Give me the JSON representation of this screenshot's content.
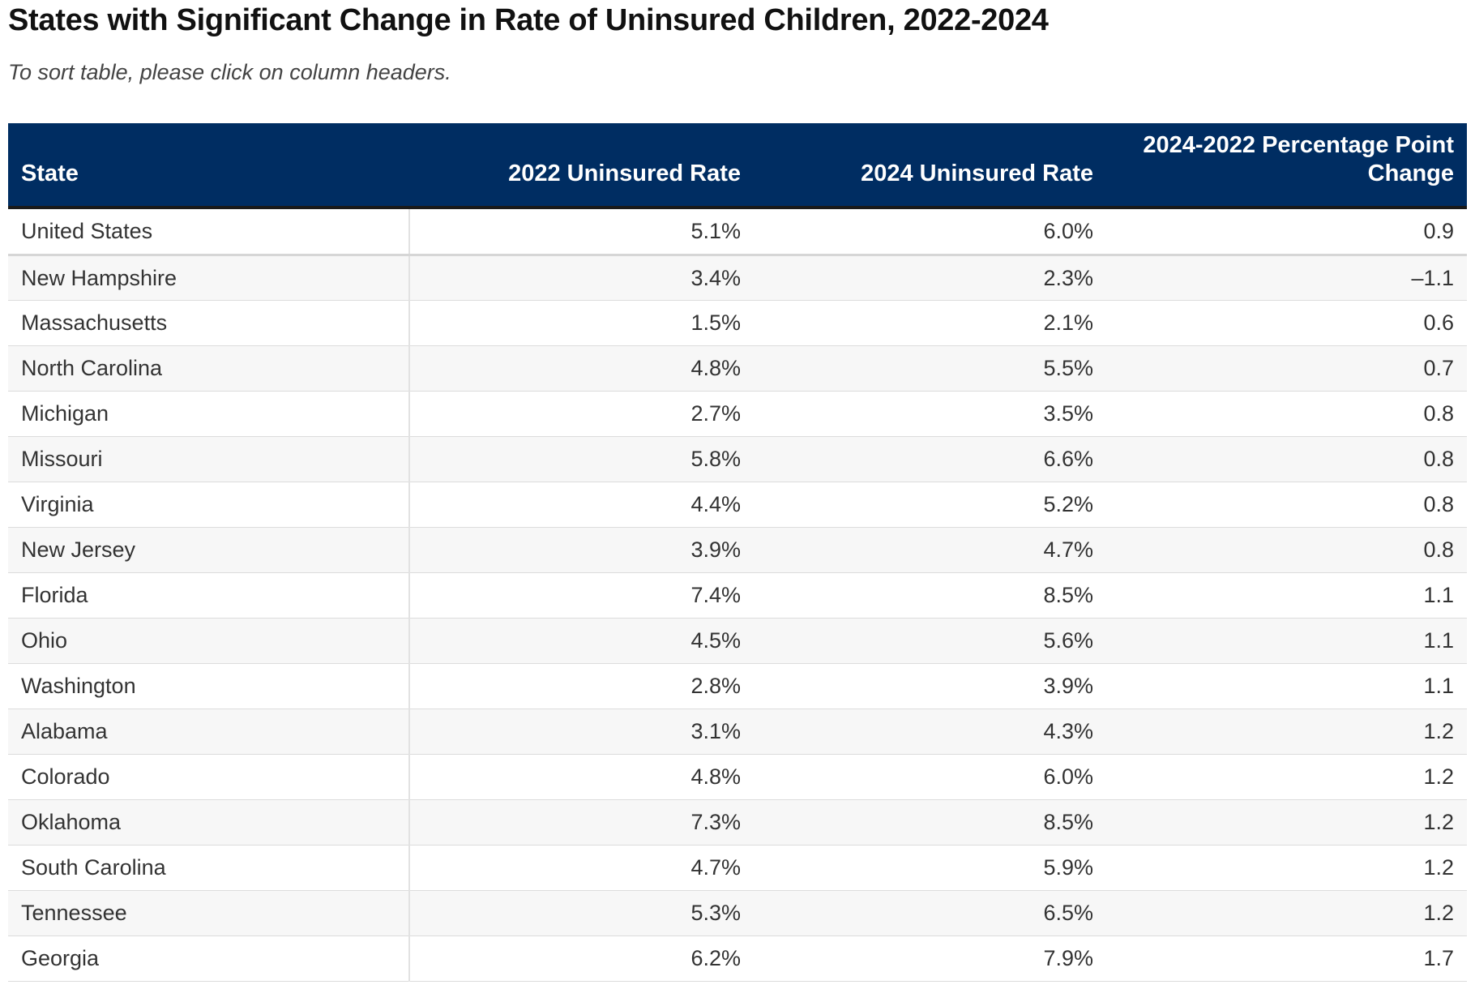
{
  "page": {
    "title": "States with Significant Change in Rate of Uninsured Children, 2022-2024",
    "subtitle": "To sort table, please click on column headers.",
    "colors": {
      "header_bg": "#002d62",
      "header_text": "#ffffff",
      "alt_row_bg": "#f7f7f7"
    }
  },
  "chart_data": {
    "type": "table",
    "title": "States with Significant Change in Rate of Uninsured Children, 2022-2024",
    "subtitle": "To sort table, please click on column headers.",
    "columns": [
      "State",
      "2022 Uninsured Rate",
      "2024 Uninsured Rate",
      "2024-2022 Percentage Point Change"
    ],
    "rows": [
      [
        "United States",
        "5.1%",
        "6.0%",
        "0.9"
      ],
      [
        "New Hampshire",
        "3.4%",
        "2.3%",
        "–1.1"
      ],
      [
        "Massachusetts",
        "1.5%",
        "2.1%",
        "0.6"
      ],
      [
        "North Carolina",
        "4.8%",
        "5.5%",
        "0.7"
      ],
      [
        "Michigan",
        "2.7%",
        "3.5%",
        "0.8"
      ],
      [
        "Missouri",
        "5.8%",
        "6.6%",
        "0.8"
      ],
      [
        "Virginia",
        "4.4%",
        "5.2%",
        "0.8"
      ],
      [
        "New Jersey",
        "3.9%",
        "4.7%",
        "0.8"
      ],
      [
        "Florida",
        "7.4%",
        "8.5%",
        "1.1"
      ],
      [
        "Ohio",
        "4.5%",
        "5.6%",
        "1.1"
      ],
      [
        "Washington",
        "2.8%",
        "3.9%",
        "1.1"
      ],
      [
        "Alabama",
        "3.1%",
        "4.3%",
        "1.2"
      ],
      [
        "Colorado",
        "4.8%",
        "6.0%",
        "1.2"
      ],
      [
        "Oklahoma",
        "7.3%",
        "8.5%",
        "1.2"
      ],
      [
        "South Carolina",
        "4.7%",
        "5.9%",
        "1.2"
      ],
      [
        "Tennessee",
        "5.3%",
        "6.5%",
        "1.2"
      ],
      [
        "Georgia",
        "6.2%",
        "7.9%",
        "1.7"
      ]
    ]
  }
}
